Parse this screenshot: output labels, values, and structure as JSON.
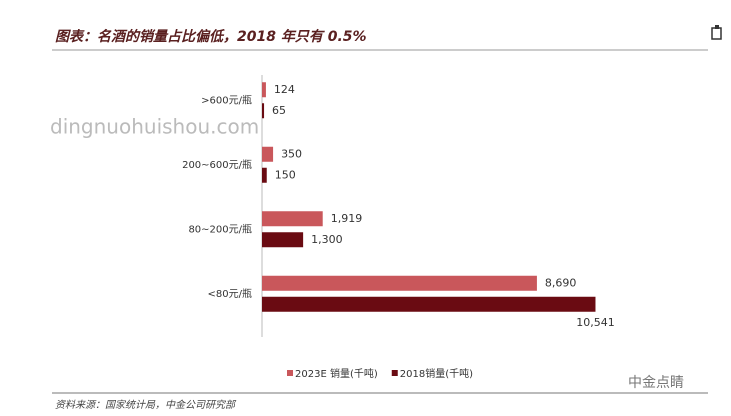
{
  "chart_data": {
    "type": "barh",
    "title": "图表：名酒的销量占比偏低，2018 年只有 0.5%",
    "categories": [
      ">600元/瓶",
      "200~600元/瓶",
      "80~200元/瓶",
      "<80元/瓶"
    ],
    "series": [
      {
        "name": "2023E 销量(千吨)",
        "color": "#c9575b",
        "values": [
          124,
          350,
          1919,
          8690
        ],
        "value_labels": [
          "124",
          "350",
          "1,919",
          "8,690"
        ]
      },
      {
        "name": "2018销量(千吨)",
        "color": "#6a0b12",
        "values": [
          65,
          150,
          1300,
          10541
        ],
        "value_labels": [
          "65",
          "150",
          "1,300",
          "10,541"
        ]
      }
    ],
    "xlim": [
      0,
      11000
    ],
    "source": "资料来源：国家统计局，中金公司研究部",
    "watermark": "dingnuohuishou.com",
    "logo": "中金点睛"
  }
}
